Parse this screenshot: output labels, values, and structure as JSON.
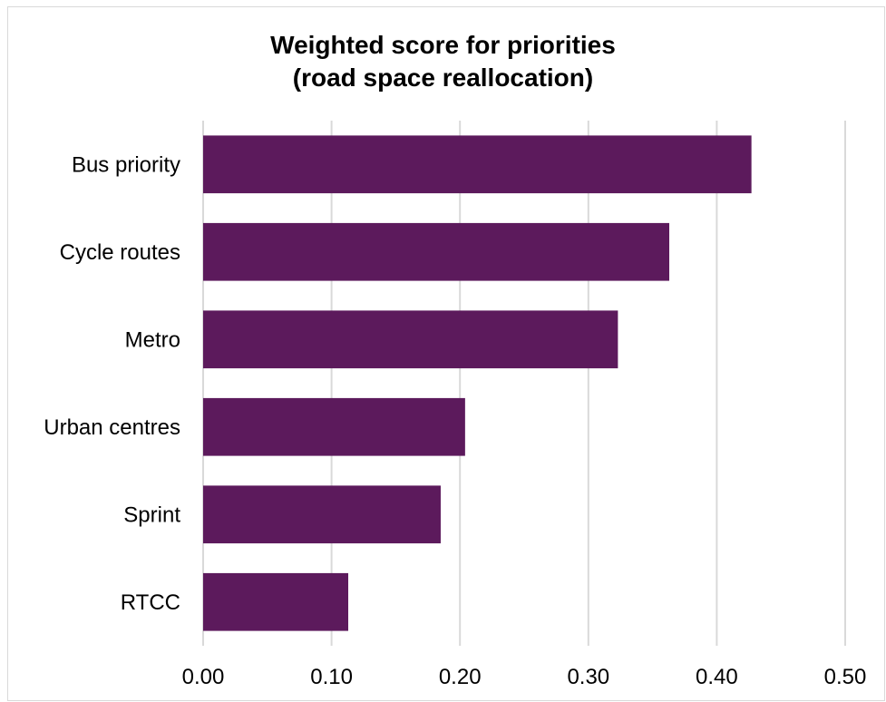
{
  "chart_data": {
    "type": "bar",
    "orientation": "horizontal",
    "title": [
      "Weighted score for priorities",
      "(road space reallocation)"
    ],
    "categories": [
      "Bus priority",
      "Cycle routes",
      "Metro",
      "Urban centres",
      "Sprint",
      "RTCC"
    ],
    "values": [
      0.427,
      0.363,
      0.323,
      0.204,
      0.185,
      0.113
    ],
    "xlim": [
      0,
      0.5
    ],
    "xticks": [
      "0.00",
      "0.10",
      "0.20",
      "0.30",
      "0.40",
      "0.50"
    ],
    "xlabel": "",
    "ylabel": "",
    "grid": "vertical",
    "legend": "none",
    "colors": {
      "bar": "#5c1a5c",
      "grid": "#d9d9d9",
      "text": "#000000"
    }
  }
}
